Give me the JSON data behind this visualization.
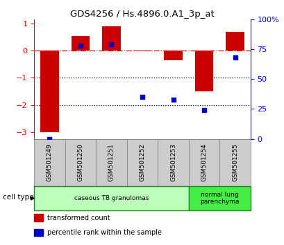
{
  "title": "GDS4256 / Hs.4896.0.A1_3p_at",
  "samples": [
    "GSM501249",
    "GSM501250",
    "GSM501251",
    "GSM501252",
    "GSM501253",
    "GSM501254",
    "GSM501255"
  ],
  "transformed_count": [
    -3.0,
    0.55,
    0.9,
    -0.02,
    -0.35,
    -1.5,
    0.7
  ],
  "percentile_rank": [
    0.0,
    78.0,
    79.0,
    35.0,
    33.0,
    24.0,
    68.0
  ],
  "ylim_left": [
    -3.25,
    1.15
  ],
  "ylim_right": [
    0,
    100
  ],
  "left_ticks": [
    1,
    0,
    -1,
    -2,
    -3
  ],
  "right_ticks": [
    100,
    75,
    50,
    25,
    0
  ],
  "right_tick_labels": [
    "100%",
    "75",
    "50",
    "25",
    "0"
  ],
  "dotted_lines": [
    -1,
    -2
  ],
  "bar_color": "#cc0000",
  "scatter_color": "#0000cc",
  "cell_groups": [
    {
      "label": "caseous TB granulomas",
      "n": 5,
      "color": "#bbffbb"
    },
    {
      "label": "normal lung\nparenchyma",
      "n": 2,
      "color": "#44ee44"
    }
  ],
  "cell_type_label": "cell type",
  "legend": [
    {
      "color": "#cc0000",
      "label": "transformed count"
    },
    {
      "color": "#0000cc",
      "label": "percentile rank within the sample"
    }
  ],
  "background_color": "#ffffff",
  "bar_width": 0.6
}
